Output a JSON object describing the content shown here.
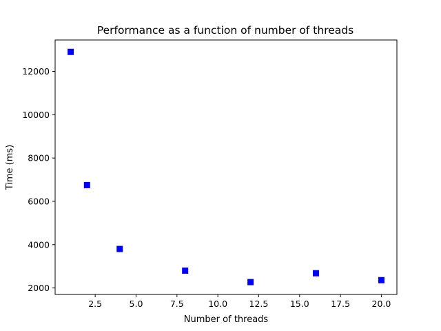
{
  "chart_data": {
    "type": "scatter",
    "title": "Performance as a function of number of threads",
    "xlabel": "Number of threads",
    "ylabel": "Time (ms)",
    "marker": "square",
    "marker_color": "#0000ff",
    "xlim": [
      0.05,
      20.95
    ],
    "ylim": [
      1700,
      13450
    ],
    "xticks": [
      2.5,
      5.0,
      7.5,
      10.0,
      12.5,
      15.0,
      17.5,
      20.0
    ],
    "xtick_labels": [
      "2.5",
      "5.0",
      "7.5",
      "10.0",
      "12.5",
      "15.0",
      "17.5",
      "20.0"
    ],
    "yticks": [
      2000,
      4000,
      6000,
      8000,
      10000,
      12000
    ],
    "ytick_labels": [
      "2000",
      "4000",
      "6000",
      "8000",
      "10000",
      "12000"
    ],
    "grid": false,
    "legend": false,
    "points": [
      {
        "x": 1,
        "y": 12900
      },
      {
        "x": 2,
        "y": 6750
      },
      {
        "x": 4,
        "y": 3800
      },
      {
        "x": 8,
        "y": 2800
      },
      {
        "x": 12,
        "y": 2270
      },
      {
        "x": 16,
        "y": 2680
      },
      {
        "x": 20,
        "y": 2360
      }
    ]
  }
}
